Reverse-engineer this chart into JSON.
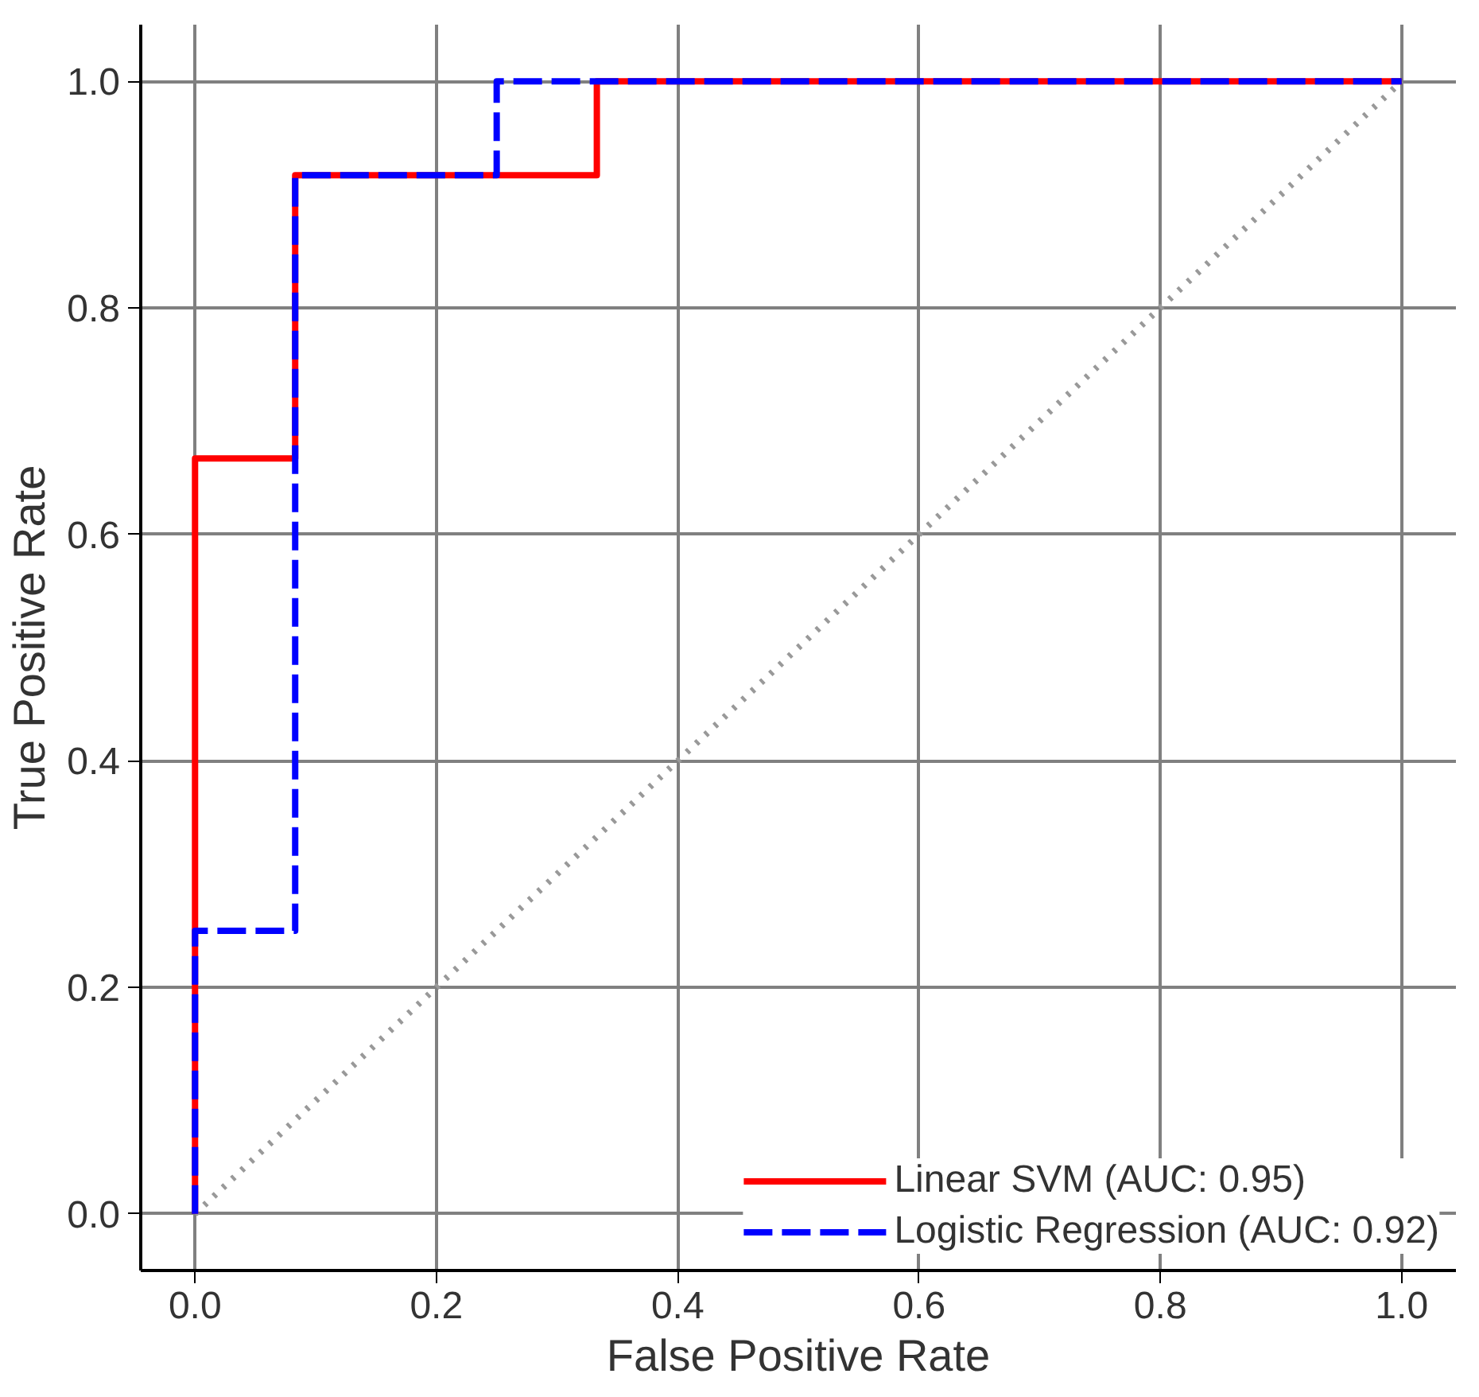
{
  "chart_data": {
    "type": "line",
    "xlabel": "False Positive Rate",
    "ylabel": "True Positive Rate",
    "xlim": [
      -0.045,
      1.045
    ],
    "ylim": [
      -0.05,
      1.05
    ],
    "xticks": [
      {
        "value": 0,
        "label": "0.0"
      },
      0.2,
      0.4,
      0.6,
      0.8,
      {
        "value": 1,
        "label": "1.0"
      }
    ],
    "yticks": [
      {
        "value": 0,
        "label": "0.0"
      },
      0.2,
      0.4,
      0.6,
      0.8,
      {
        "value": 1,
        "label": "1.0"
      }
    ],
    "grid": true,
    "legend": "bottom right",
    "marker": "none",
    "series": [
      {
        "x": [
          0,
          1
        ],
        "values": [
          0,
          1
        ],
        "color": "#999999",
        "line_style": "dotted"
      },
      {
        "name": "Linear SVM (AUC: 0.95)",
        "x": [
          0,
          0,
          0.083,
          0.083,
          0.333,
          0.333,
          1
        ],
        "values": [
          0,
          0.667,
          0.667,
          0.917,
          0.917,
          1,
          1
        ],
        "color": "#ff0000",
        "line_style": "solid"
      },
      {
        "name": "Logistic Regression (AUC: 0.92)",
        "x": [
          0,
          0,
          0.083,
          0.083,
          0.25,
          0.25,
          1
        ],
        "values": [
          0,
          0.25,
          0.25,
          0.917,
          0.917,
          1,
          1
        ],
        "color": "#0000ff",
        "line_style": "dashed"
      }
    ]
  }
}
